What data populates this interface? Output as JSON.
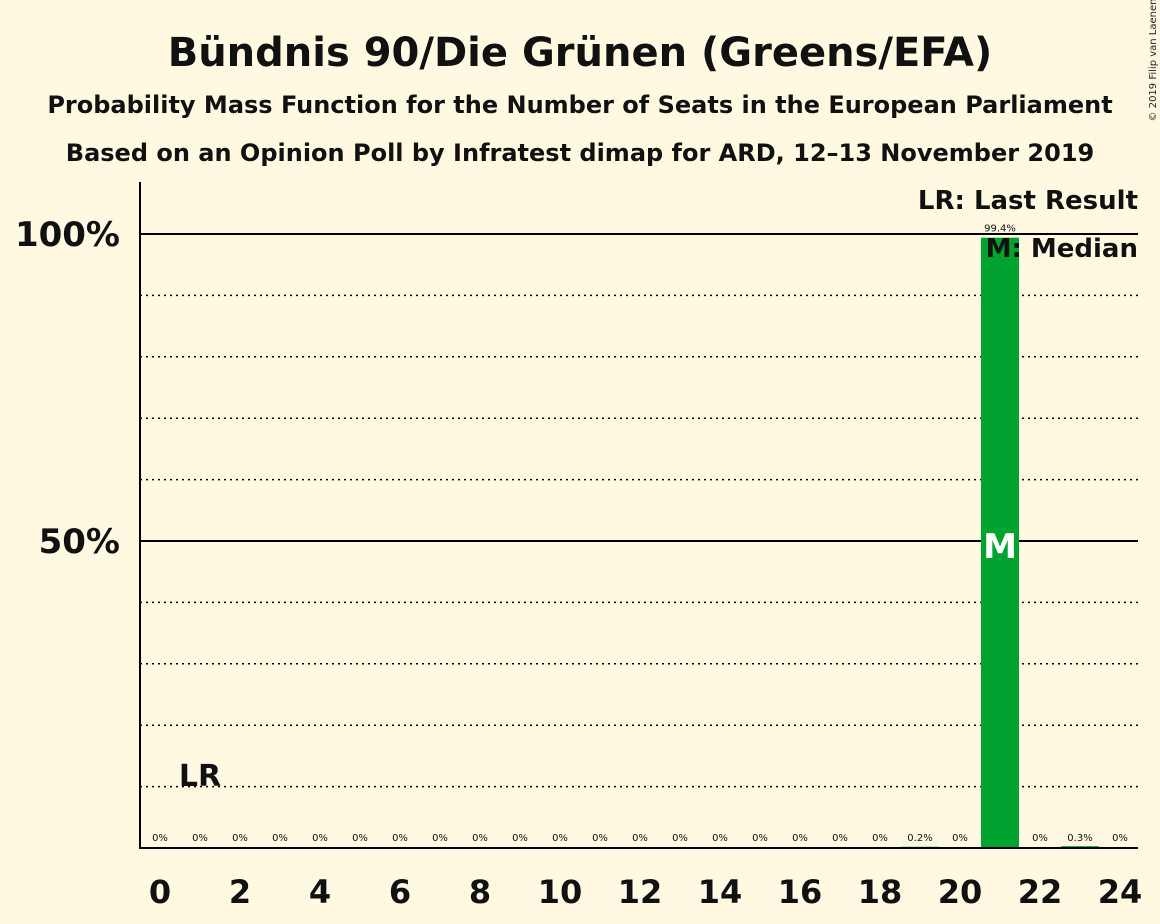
{
  "chart_data": {
    "type": "bar",
    "title": "Bündnis 90/Die Grünen (Greens/EFA)",
    "subtitle_1": "Probability Mass Function for the Number of Seats in the European Parliament",
    "subtitle_2": "Based on an Opinion Poll by Infratest dimap for ARD, 12–13 November 2019",
    "copyright": "© 2019 Filip van Laenen",
    "x": [
      0,
      1,
      2,
      3,
      4,
      5,
      6,
      7,
      8,
      9,
      10,
      11,
      12,
      13,
      14,
      15,
      16,
      17,
      18,
      19,
      20,
      21,
      22,
      23,
      24
    ],
    "values": [
      0,
      0,
      0,
      0,
      0,
      0,
      0,
      0,
      0,
      0,
      0,
      0,
      0,
      0,
      0,
      0,
      0,
      0,
      0,
      0.2,
      0,
      99.4,
      0,
      0.3,
      0
    ],
    "data_labels": [
      "0%",
      "0%",
      "0%",
      "0%",
      "0%",
      "0%",
      "0%",
      "0%",
      "0%",
      "0%",
      "0%",
      "0%",
      "0%",
      "0%",
      "0%",
      "0%",
      "0%",
      "0%",
      "0%",
      "0.2%",
      "0%",
      "99.4%",
      "0%",
      "0.3%",
      "0%"
    ],
    "x_ticks": [
      "0",
      "2",
      "4",
      "6",
      "8",
      "10",
      "12",
      "14",
      "16",
      "18",
      "20",
      "22",
      "24"
    ],
    "y_ticks": [
      {
        "value": 50,
        "label": "50%"
      },
      {
        "value": 100,
        "label": "100%"
      }
    ],
    "ylim": [
      0,
      108
    ],
    "grid": "dotted every 10%",
    "bar_color": "#00A230",
    "last_result": {
      "seat": 1,
      "label": "LR"
    },
    "median": {
      "seat": 21,
      "label": "M"
    },
    "legend": {
      "position": "top-right",
      "lines": [
        "LR: Last Result",
        "M: Median"
      ]
    }
  }
}
